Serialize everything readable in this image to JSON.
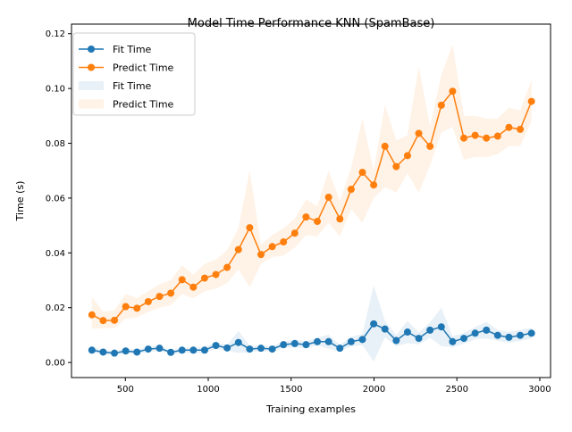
{
  "chart_data": {
    "type": "line",
    "title": "Model Time Performance KNN (SpamBase)",
    "xlabel": "Training examples",
    "ylabel": "Time (s)",
    "xlim": [
      175,
      3065
    ],
    "ylim": [
      -0.0055,
      0.1235
    ],
    "xticks": [
      500,
      1000,
      1500,
      2000,
      2500,
      3000
    ],
    "xtick_labels": [
      "500",
      "1000",
      "1500",
      "2000",
      "2500",
      "3000"
    ],
    "yticks": [
      0.0,
      0.02,
      0.04,
      0.06,
      0.08,
      0.1,
      0.12
    ],
    "ytick_labels": [
      "0.00",
      "0.02",
      "0.04",
      "0.06",
      "0.08",
      "0.10",
      "0.12"
    ],
    "grid": false,
    "legend_position": "upper-left",
    "x": [
      298,
      366,
      434,
      502,
      570,
      638,
      706,
      774,
      842,
      910,
      978,
      1046,
      1114,
      1182,
      1250,
      1318,
      1386,
      1454,
      1522,
      1590,
      1658,
      1726,
      1794,
      1862,
      1930,
      1998,
      2066,
      2134,
      2202,
      2270,
      2338,
      2406,
      2474,
      2542,
      2610,
      2678,
      2746,
      2814,
      2882,
      2950
    ],
    "series": [
      {
        "name": "Fit Time",
        "color": "#1f77b4",
        "values": [
          0.0045,
          0.0038,
          0.0034,
          0.0042,
          0.0038,
          0.0049,
          0.0052,
          0.0037,
          0.0045,
          0.0045,
          0.0045,
          0.0062,
          0.0053,
          0.0073,
          0.0049,
          0.0052,
          0.0049,
          0.0065,
          0.0069,
          0.0065,
          0.0076,
          0.0076,
          0.0052,
          0.0076,
          0.0084,
          0.0141,
          0.0122,
          0.008,
          0.0111,
          0.0088,
          0.0118,
          0.013,
          0.0076,
          0.0088,
          0.0107,
          0.0118,
          0.0099,
          0.0092,
          0.0099,
          0.0107
        ],
        "band": [
          [
            0.0035,
            0.0057
          ],
          [
            0.003,
            0.0046
          ],
          [
            0.0026,
            0.0042
          ],
          [
            0.0032,
            0.0052
          ],
          [
            0.003,
            0.0046
          ],
          [
            0.0039,
            0.0059
          ],
          [
            0.0042,
            0.0062
          ],
          [
            0.003,
            0.0044
          ],
          [
            0.0035,
            0.0055
          ],
          [
            0.0035,
            0.0055
          ],
          [
            0.0035,
            0.0055
          ],
          [
            0.0049,
            0.0075
          ],
          [
            0.0043,
            0.0063
          ],
          [
            0.0035,
            0.0115
          ],
          [
            0.0037,
            0.0061
          ],
          [
            0.0042,
            0.0062
          ],
          [
            0.0039,
            0.0059
          ],
          [
            0.0053,
            0.0077
          ],
          [
            0.0055,
            0.0083
          ],
          [
            0.0052,
            0.0078
          ],
          [
            0.0062,
            0.009
          ],
          [
            0.005,
            0.0102
          ],
          [
            0.004,
            0.0064
          ],
          [
            0.0058,
            0.0094
          ],
          [
            0.0064,
            0.0104
          ],
          [
            0.0003,
            0.0282
          ],
          [
            0.0092,
            0.0152
          ],
          [
            0.006,
            0.01
          ],
          [
            0.007,
            0.0152
          ],
          [
            0.0066,
            0.011
          ],
          [
            0.009,
            0.0146
          ],
          [
            0.006,
            0.02
          ],
          [
            0.0056,
            0.0096
          ],
          [
            0.0068,
            0.0108
          ],
          [
            0.0085,
            0.0129
          ],
          [
            0.0088,
            0.0148
          ],
          [
            0.0079,
            0.0119
          ],
          [
            0.0072,
            0.0112
          ],
          [
            0.0079,
            0.0119
          ],
          [
            0.0087,
            0.0127
          ]
        ]
      },
      {
        "name": "Predict Time",
        "color": "#ff7f0e",
        "values": [
          0.0174,
          0.0153,
          0.0154,
          0.0204,
          0.0198,
          0.0222,
          0.0241,
          0.0253,
          0.0302,
          0.0275,
          0.0308,
          0.0321,
          0.0347,
          0.0412,
          0.0492,
          0.0394,
          0.0423,
          0.044,
          0.0472,
          0.0531,
          0.0515,
          0.0603,
          0.0524,
          0.0632,
          0.0694,
          0.0648,
          0.0789,
          0.0715,
          0.0755,
          0.0836,
          0.0789,
          0.0939,
          0.099,
          0.0819,
          0.0829,
          0.0819,
          0.0826,
          0.0858,
          0.0851,
          0.0953
        ],
        "band": [
          [
            0.0124,
            0.024
          ],
          [
            0.0125,
            0.0185
          ],
          [
            0.0126,
            0.019
          ],
          [
            0.016,
            0.025
          ],
          [
            0.0165,
            0.0235
          ],
          [
            0.0185,
            0.026
          ],
          [
            0.02,
            0.0285
          ],
          [
            0.021,
            0.03
          ],
          [
            0.025,
            0.0355
          ],
          [
            0.0235,
            0.032
          ],
          [
            0.026,
            0.036
          ],
          [
            0.027,
            0.0375
          ],
          [
            0.029,
            0.041
          ],
          [
            0.034,
            0.049
          ],
          [
            0.0275,
            0.07
          ],
          [
            0.036,
            0.043
          ],
          [
            0.0385,
            0.0465
          ],
          [
            0.039,
            0.049
          ],
          [
            0.042,
            0.0525
          ],
          [
            0.0465,
            0.0595
          ],
          [
            0.046,
            0.057
          ],
          [
            0.051,
            0.07
          ],
          [
            0.046,
            0.059
          ],
          [
            0.056,
            0.071
          ],
          [
            0.051,
            0.089
          ],
          [
            0.06,
            0.07
          ],
          [
            0.064,
            0.094
          ],
          [
            0.062,
            0.081
          ],
          [
            0.069,
            0.083
          ],
          [
            0.062,
            0.108
          ],
          [
            0.072,
            0.086
          ],
          [
            0.084,
            0.105
          ],
          [
            0.086,
            0.116
          ],
          [
            0.074,
            0.09
          ],
          [
            0.075,
            0.09
          ],
          [
            0.075,
            0.089
          ],
          [
            0.076,
            0.089
          ],
          [
            0.079,
            0.093
          ],
          [
            0.079,
            0.092
          ],
          [
            0.088,
            0.103
          ]
        ]
      }
    ],
    "legend": [
      {
        "label": "Fit Time",
        "kind": "line",
        "color": "#1f77b4"
      },
      {
        "label": "Predict Time",
        "kind": "line",
        "color": "#ff7f0e"
      },
      {
        "label": "Fit Time",
        "kind": "band",
        "color": "#1f77b4"
      },
      {
        "label": "Predict Time",
        "kind": "band",
        "color": "#ff7f0e"
      }
    ]
  }
}
